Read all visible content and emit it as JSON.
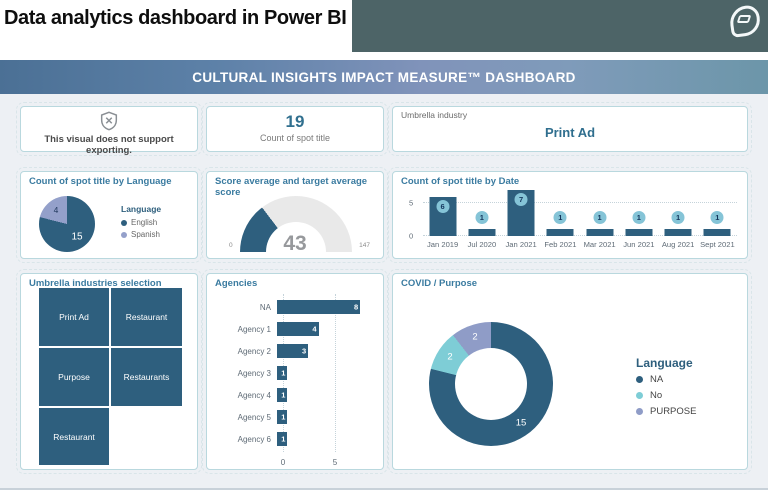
{
  "top_bar": {
    "title": "Data analytics dashboard in Power BI"
  },
  "banner": {
    "title": "CULTURAL INSIGHTS IMPACT MEASURE™ DASHBOARD"
  },
  "cards": {
    "notice": {
      "text": "This visual does not support exporting."
    },
    "count": {
      "value": "19",
      "label": "Count of spot title"
    },
    "industry": {
      "label": "Umbrella industry",
      "value": "Print Ad"
    }
  },
  "colors": {
    "topbar_teal": "#4d6467",
    "banner_left": "#4b7095",
    "banner_right": "#6c96a9",
    "dark_blue": "#2e5f7e",
    "badge_cyan": "#85c4d7",
    "lavender": "#94a0ca",
    "donut_cyan": "#7ecdd6",
    "card_border": "#b9d8de"
  },
  "chart_data": [
    {
      "id": "language_pie",
      "type": "pie",
      "title": "Count of spot title by Language",
      "legend_title": "Language",
      "labels": [
        "English",
        "Spanish"
      ],
      "values": [
        15,
        4
      ],
      "colors": [
        "#2e5f7e",
        "#94a0ca"
      ],
      "legend_position": "right"
    },
    {
      "id": "score_gauge",
      "type": "gauge",
      "title": "Score average and target average score",
      "value": 43,
      "min": 0,
      "max": 147,
      "fill_color": "#2e5f7e",
      "track_color": "#e9e9e9"
    },
    {
      "id": "date_bars",
      "type": "bar",
      "title": "Count of spot title by Date",
      "categories": [
        "Jan 2019",
        "Jul 2020",
        "Jan 2021",
        "Feb 2021",
        "Mar 2021",
        "Jun 2021",
        "Aug 2021",
        "Sept 2021"
      ],
      "values": [
        6,
        1,
        7,
        1,
        1,
        1,
        1,
        1
      ],
      "ylim": [
        0,
        7
      ],
      "y_ticks": [
        0,
        5
      ],
      "grid": "dotted",
      "bar_color": "#2e5f7e",
      "badge_color": "#85c4d7"
    },
    {
      "id": "industry_treemap",
      "type": "treemap",
      "title": "Umbrella industries selection",
      "tiles": [
        "Print Ad",
        "Restaurant",
        "Purpose",
        "Restaurants",
        "Restaurant"
      ],
      "tile_color": "#2e5f7e"
    },
    {
      "id": "agency_bars",
      "type": "bar",
      "title": "Agencies",
      "orientation": "horizontal",
      "categories": [
        "NA",
        "Agency 1",
        "Agency 2",
        "Agency 3",
        "Agency 4",
        "Agency 5",
        "Agency 6"
      ],
      "values": [
        8,
        4,
        3,
        1,
        1,
        1,
        1
      ],
      "xlim": [
        0,
        8
      ],
      "x_ticks": [
        0,
        5
      ],
      "grid": "dotted",
      "bar_color": "#2e5f7e"
    },
    {
      "id": "covid_donut",
      "type": "pie",
      "title": "COVID / Purpose",
      "legend_title": "Language",
      "labels": [
        "NA",
        "No",
        "PURPOSE"
      ],
      "values": [
        15,
        2,
        2
      ],
      "colors": [
        "#2e5f7e",
        "#7ecdd6",
        "#8f9cc7"
      ],
      "legend_position": "right"
    }
  ]
}
